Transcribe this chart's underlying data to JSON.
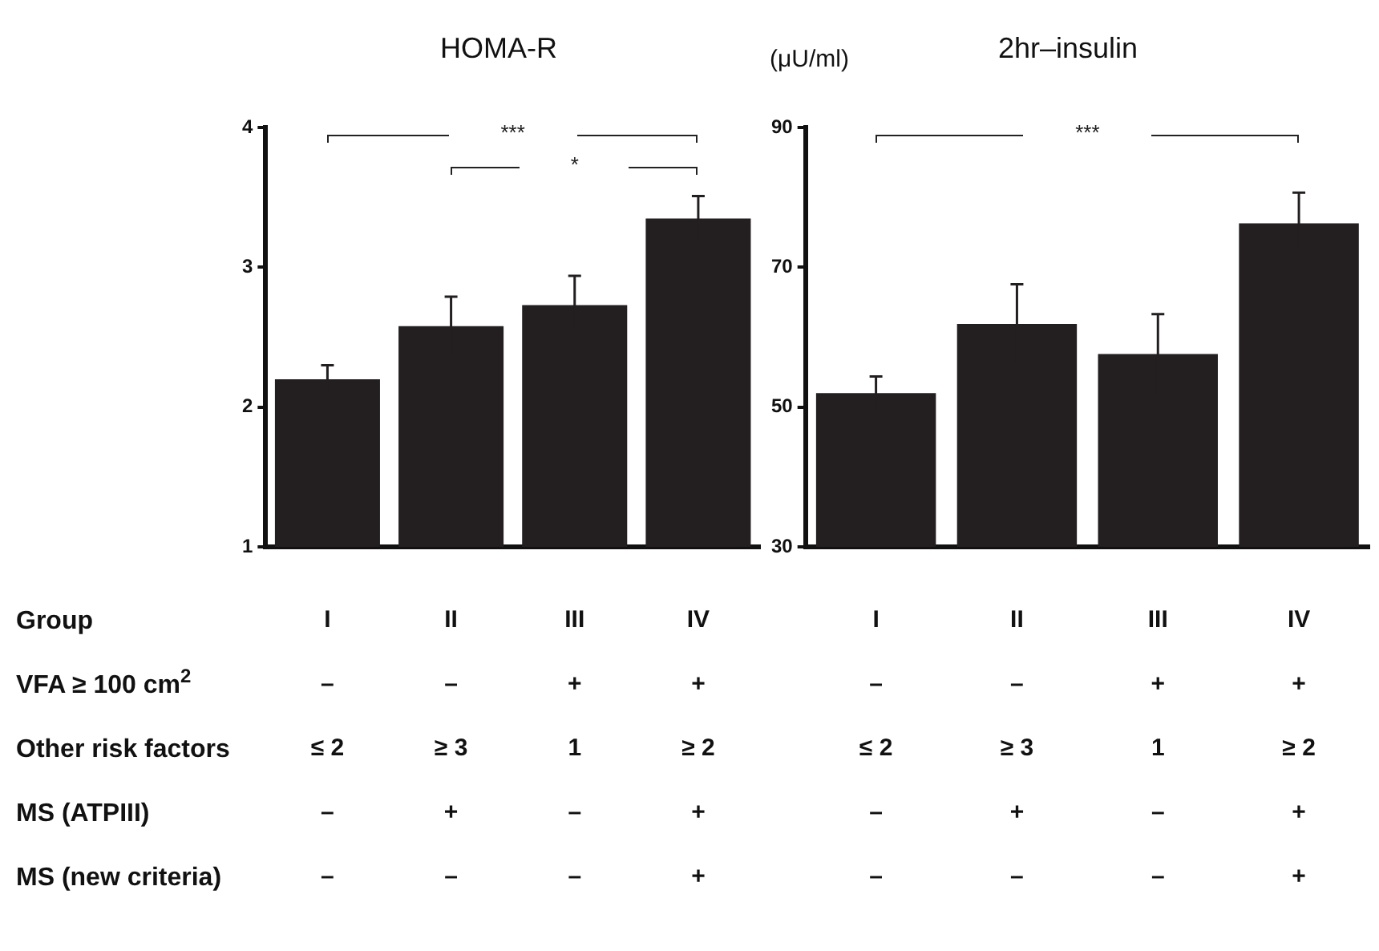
{
  "chart_data": [
    {
      "type": "bar",
      "title": "HOMA-R",
      "categories": [
        "I\n–\n≤ 2\n–\n–",
        "II\n–\n≥ 3\n+\n–",
        "III\n+\n1\n–\n–",
        "IV\n+\n≥ 2\n+\n+"
      ],
      "values": [
        2.2,
        2.58,
        2.73,
        3.35
      ],
      "errors": [
        0.1,
        0.21,
        0.21,
        0.16
      ],
      "color": "#231f20",
      "ylim": [
        1,
        4
      ],
      "yticks": [
        1,
        2,
        3,
        4
      ],
      "grid": false,
      "legend": false,
      "annotations": [
        "***",
        "*"
      ]
    },
    {
      "type": "bar",
      "title": "2hr–insulin",
      "ylabel": "(μU/ml)",
      "categories": [
        "I\n–\n≤ 2\n–\n–",
        "II\n–\n≥ 3\n+\n–",
        "III\n+\n1\n–\n–",
        "IV\n+\n≥ 2\n+\n+"
      ],
      "values": [
        52.0,
        61.9,
        57.6,
        76.3
      ],
      "errors": [
        2.4,
        5.7,
        5.7,
        4.4
      ],
      "color": "#231f20",
      "ylim": [
        30,
        90
      ],
      "yticks": [
        30,
        50,
        70,
        90
      ],
      "grid": false,
      "legend": false,
      "annotations": [
        "***"
      ]
    },
    {
      "type": "other",
      "annotations": [
        "Group",
        "VFA ≥ 100 cm$^{2}$",
        "Other risk factors",
        "MS (ATPIII)",
        "MS (new criteria)"
      ]
    }
  ]
}
